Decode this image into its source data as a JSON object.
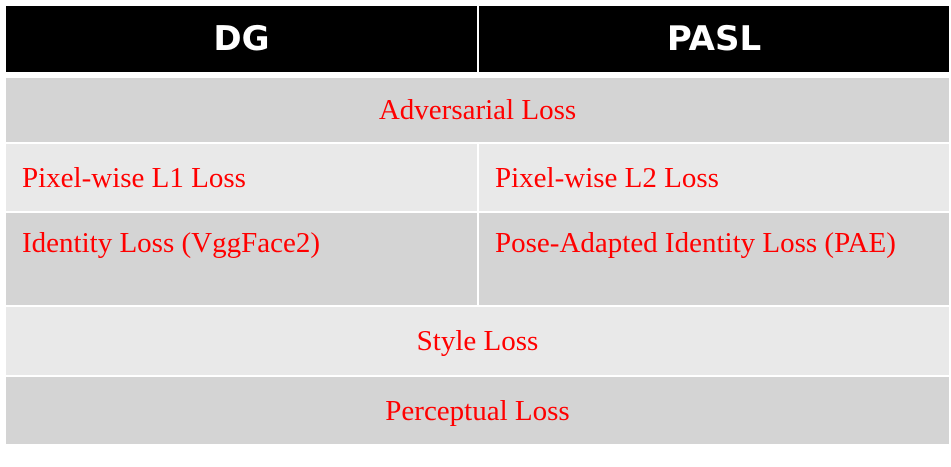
{
  "table": {
    "headers": [
      "DG",
      "PASL"
    ],
    "rows": [
      {
        "type": "merged",
        "text": "Adversarial Loss"
      },
      {
        "type": "split",
        "left": "Pixel-wise L1 Loss",
        "right": "Pixel-wise L2 Loss"
      },
      {
        "type": "split",
        "left": "Identity Loss (VggFace2)",
        "right": "Pose-Adapted Identity Loss (PAE)"
      },
      {
        "type": "merged",
        "text": "Style Loss"
      },
      {
        "type": "merged",
        "text": "Perceptual Loss"
      }
    ]
  },
  "colors": {
    "header_bg": "#000000",
    "header_text": "#ffffff",
    "cell_text": "#ff0000",
    "row_dark": "#d4d4d4",
    "row_light": "#e9e9e9"
  }
}
